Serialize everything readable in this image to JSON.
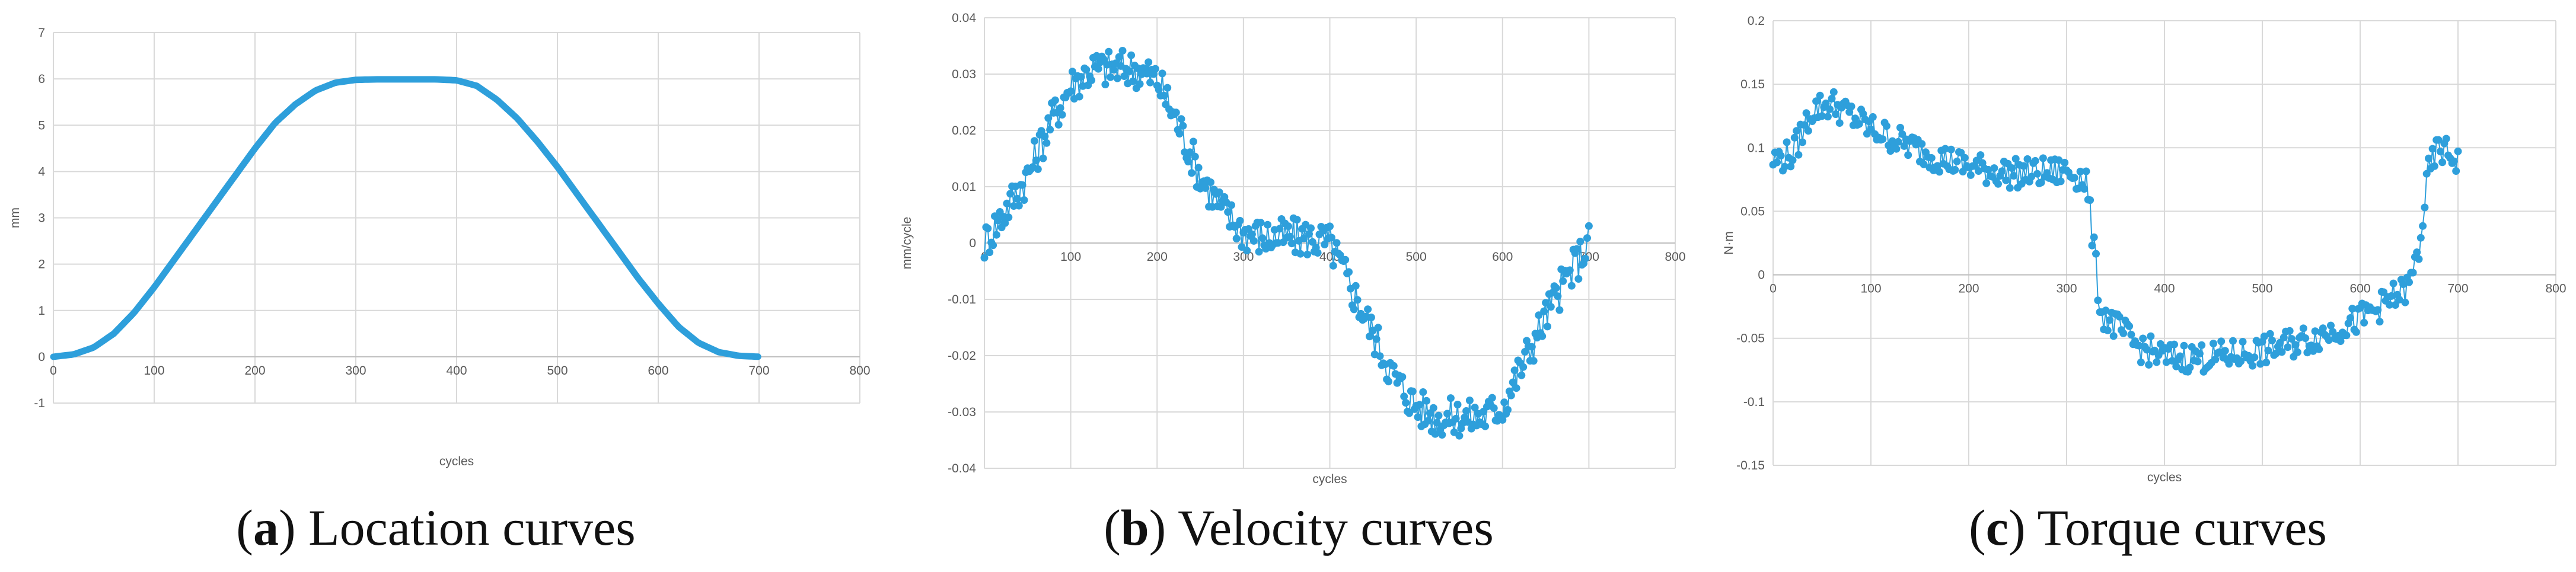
{
  "colors": {
    "series": "#2e9fdb",
    "grid": "#d9d9d9",
    "axis": "#bfbfbf",
    "text": "#595959"
  },
  "chart_data": [
    {
      "id": "a",
      "type": "line",
      "title": "",
      "caption_letter": "a",
      "caption_text": "Location curves",
      "xlabel": "cycles",
      "ylabel": "mm",
      "xlim": [
        0,
        800
      ],
      "ylim": [
        -1,
        7
      ],
      "xticks": [
        0,
        100,
        200,
        300,
        400,
        500,
        600,
        700,
        800
      ],
      "yticks": [
        -1,
        0,
        1,
        2,
        3,
        4,
        5,
        6,
        7
      ],
      "xtick_labels_at_zero": true,
      "series": [
        {
          "name": "Location",
          "x": [
            0,
            20,
            40,
            60,
            80,
            100,
            120,
            140,
            160,
            180,
            200,
            220,
            240,
            260,
            280,
            300,
            320,
            340,
            360,
            380,
            400,
            420,
            440,
            460,
            480,
            500,
            520,
            540,
            560,
            580,
            600,
            620,
            640,
            660,
            680,
            700
          ],
          "values": [
            0,
            0.05,
            0.2,
            0.5,
            0.95,
            1.5,
            2.1,
            2.7,
            3.3,
            3.9,
            4.5,
            5.05,
            5.45,
            5.75,
            5.92,
            5.98,
            5.99,
            5.99,
            5.99,
            5.99,
            5.97,
            5.85,
            5.55,
            5.15,
            4.65,
            4.1,
            3.5,
            2.9,
            2.3,
            1.7,
            1.15,
            0.65,
            0.3,
            0.1,
            0.02,
            0
          ]
        }
      ]
    },
    {
      "id": "b",
      "type": "line",
      "title": "",
      "caption_letter": "b",
      "caption_text": "Velocity curves",
      "xlabel": "cycles",
      "ylabel": "mm/cycle",
      "xlim": [
        0,
        800
      ],
      "ylim": [
        -0.04,
        0.04
      ],
      "xticks": [
        0,
        100,
        200,
        300,
        400,
        500,
        600,
        700,
        800
      ],
      "yticks": [
        -0.04,
        -0.03,
        -0.02,
        -0.01,
        0,
        0.01,
        0.02,
        0.03,
        0.04
      ],
      "xtick_labels_at_zero": true,
      "series": [
        {
          "name": "Velocity",
          "x": [
            0,
            25,
            50,
            75,
            100,
            125,
            150,
            175,
            200,
            225,
            250,
            275,
            300,
            325,
            350,
            375,
            400,
            425,
            450,
            475,
            500,
            525,
            550,
            575,
            600,
            625,
            650,
            675,
            700
          ],
          "values": [
            0.0,
            0.006,
            0.012,
            0.021,
            0.028,
            0.031,
            0.031,
            0.031,
            0.029,
            0.021,
            0.012,
            0.006,
            0.002,
            0.001,
            0.001,
            0.001,
            0.0,
            -0.008,
            -0.016,
            -0.024,
            -0.029,
            -0.031,
            -0.031,
            -0.031,
            -0.029,
            -0.021,
            -0.013,
            -0.006,
            0.0
          ],
          "noise": 0.0035
        }
      ]
    },
    {
      "id": "c",
      "type": "line",
      "title": "",
      "caption_letter": "c",
      "caption_text": "Torque curves",
      "xlabel": "cycles",
      "ylabel": "N·m",
      "xlim": [
        0,
        800
      ],
      "ylim": [
        -0.15,
        0.2
      ],
      "xticks": [
        0,
        100,
        200,
        300,
        400,
        500,
        600,
        700,
        800
      ],
      "yticks": [
        -0.15,
        -0.1,
        -0.05,
        0,
        0.05,
        0.1,
        0.15,
        0.2
      ],
      "xtick_labels_at_zero": true,
      "series": [
        {
          "name": "Torque",
          "x": [
            0,
            20,
            40,
            60,
            80,
            100,
            130,
            160,
            200,
            240,
            280,
            300,
            320,
            335,
            350,
            370,
            400,
            450,
            500,
            550,
            600,
            620,
            640,
            650,
            660,
            670,
            680,
            700
          ],
          "values": [
            0.09,
            0.095,
            0.13,
            0.135,
            0.125,
            0.115,
            0.105,
            0.095,
            0.085,
            0.08,
            0.08,
            0.082,
            0.075,
            -0.03,
            -0.04,
            -0.055,
            -0.065,
            -0.065,
            -0.06,
            -0.05,
            -0.035,
            -0.025,
            -0.015,
            -0.01,
            0.02,
            0.08,
            0.1,
            0.09
          ],
          "noise": 0.012
        }
      ]
    }
  ]
}
